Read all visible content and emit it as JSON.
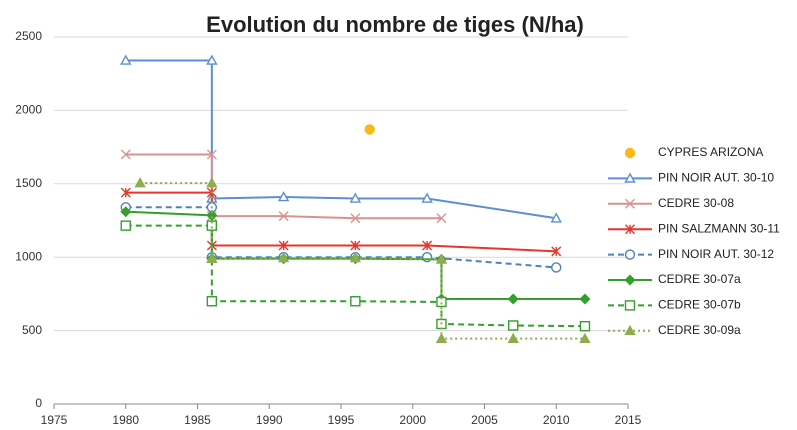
{
  "chart_data": {
    "type": "line",
    "title": "Evolution du nombre de tiges (N/ha)",
    "xlim": [
      1975,
      2015
    ],
    "xticks": [
      1975,
      1980,
      1985,
      1990,
      1995,
      2000,
      2005,
      2010,
      2015
    ],
    "ylim": [
      0,
      2500
    ],
    "yticks": [
      0,
      500,
      1000,
      1500,
      2000,
      2500
    ],
    "grid": true,
    "legend": "right",
    "series": [
      {
        "name": "CYPRES ARIZONA",
        "color": "#fbb917",
        "marker": "dot",
        "line": "none",
        "x": [
          1997
        ],
        "values": [
          1870
        ]
      },
      {
        "name": "PIN NOIR AUT. 30-10",
        "color": "#5b8fd1",
        "marker": "triangle-open",
        "line": "solid",
        "x": [
          1980,
          1986,
          1986,
          1991,
          1996,
          2001,
          2010
        ],
        "values": [
          2340,
          2340,
          1400,
          1410,
          1400,
          1400,
          1265
        ]
      },
      {
        "name": "CEDRE 30-08",
        "color": "#d9928f",
        "marker": "cross",
        "line": "solid",
        "x": [
          1980,
          1986,
          1986,
          1991,
          1996,
          2002
        ],
        "values": [
          1700,
          1700,
          1280,
          1280,
          1265,
          1265
        ]
      },
      {
        "name": "PIN SALZMANN 30-11",
        "color": "#e8352b",
        "marker": "star",
        "line": "solid",
        "x": [
          1980,
          1986,
          1986,
          1991,
          1996,
          2001,
          2010
        ],
        "values": [
          1440,
          1440,
          1080,
          1080,
          1080,
          1080,
          1040
        ]
      },
      {
        "name": "PIN NOIR AUT. 30-12",
        "color": "#4f81bd",
        "marker": "circle-open",
        "line": "dashed",
        "x": [
          1980,
          1986,
          1986,
          1991,
          1996,
          2001,
          2010
        ],
        "values": [
          1340,
          1340,
          1000,
          1000,
          1000,
          1000,
          930
        ]
      },
      {
        "name": "CEDRE 30-07a",
        "color": "#33a02c",
        "marker": "diamond",
        "line": "solid",
        "x": [
          1980,
          1986,
          1986,
          1991,
          1996,
          2002,
          2002,
          2007,
          2012
        ],
        "values": [
          1310,
          1285,
          990,
          990,
          990,
          985,
          715,
          715,
          715
        ]
      },
      {
        "name": "CEDRE 30-07b",
        "color": "#33a02c",
        "marker": "square-open",
        "line": "dashed",
        "x": [
          1980,
          1986,
          1986,
          1996,
          2002,
          2002,
          2007,
          2012
        ],
        "values": [
          1215,
          1215,
          700,
          700,
          695,
          545,
          535,
          530
        ]
      },
      {
        "name": "CEDRE 30-09a",
        "color": "#8fac4f",
        "marker": "triangle",
        "line": "dotted",
        "x": [
          1981,
          1986,
          1986,
          1991,
          1996,
          2002,
          2002,
          2007,
          2012
        ],
        "values": [
          1505,
          1505,
          990,
          995,
          995,
          985,
          445,
          445,
          445
        ]
      }
    ]
  }
}
